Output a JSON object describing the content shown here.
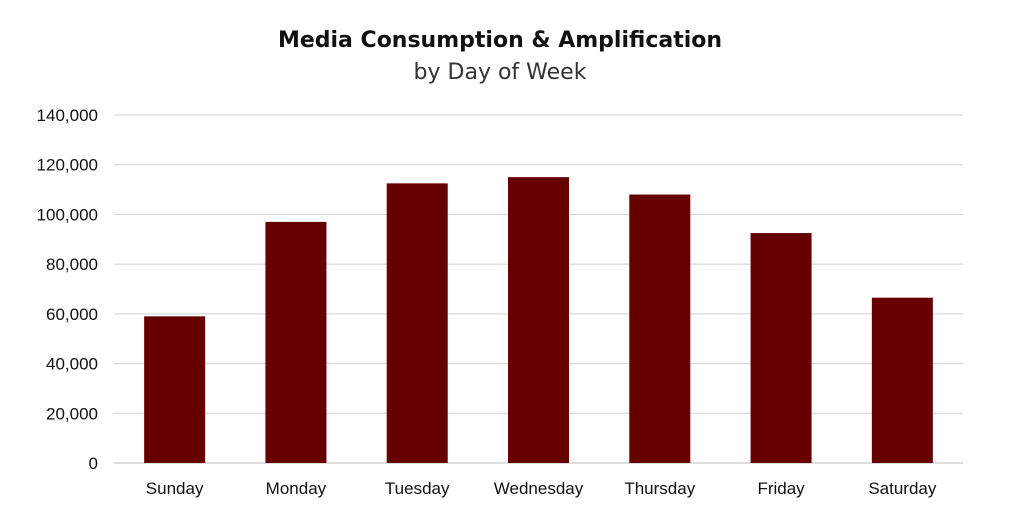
{
  "chart_data": {
    "type": "bar",
    "title": "Media Consumption & Amplification",
    "subtitle": "by Day of Week",
    "xlabel": "",
    "ylabel": "",
    "categories": [
      "Sunday",
      "Monday",
      "Tuesday",
      "Wednesday",
      "Thursday",
      "Friday",
      "Saturday"
    ],
    "values": [
      59000,
      97000,
      112500,
      115000,
      108000,
      92500,
      66500
    ],
    "ylim": [
      0,
      140000
    ],
    "yticks": [
      0,
      20000,
      40000,
      60000,
      80000,
      100000,
      120000,
      140000
    ],
    "ytick_labels": [
      "0",
      "20,000",
      "40,000",
      "60,000",
      "80,000",
      "100,000",
      "120,000",
      "140,000"
    ],
    "grid": true,
    "legend": "none",
    "colors": {
      "bar": "#660000",
      "grid": "#d0d0d0"
    }
  }
}
